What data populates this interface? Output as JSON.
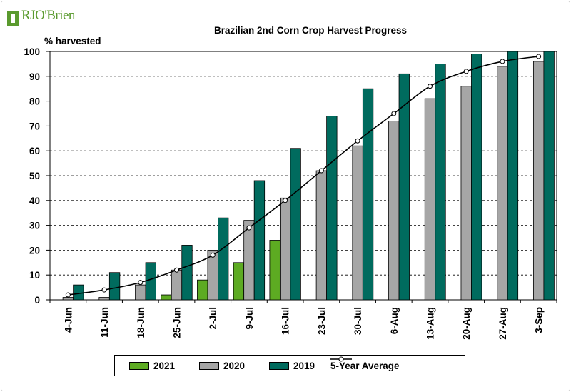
{
  "logo": {
    "text": "RJO'Brien",
    "color": "#5a9a2e"
  },
  "chart_data": {
    "type": "bar",
    "title": "Brazilian 2nd Corn Crop Harvest Progress",
    "ylabel": "% harvested",
    "xlabel": "",
    "ylim": [
      0,
      100
    ],
    "yticks": [
      0,
      10,
      20,
      30,
      40,
      50,
      60,
      70,
      80,
      90,
      100
    ],
    "grid": "dashed horizontal",
    "legend_position": "bottom",
    "categories": [
      "4-Jun",
      "11-Jun",
      "18-Jun",
      "25-Jun",
      "2-Jul",
      "9-Jul",
      "16-Jul",
      "23-Jul",
      "30-Jul",
      "6-Aug",
      "13-Aug",
      "20-Aug",
      "27-Aug",
      "3-Sep"
    ],
    "series": [
      {
        "name": "2021",
        "kind": "bar",
        "color": "#5dab22",
        "values": [
          null,
          null,
          null,
          2,
          8,
          15,
          24,
          null,
          null,
          null,
          null,
          null,
          null,
          null
        ]
      },
      {
        "name": "2020",
        "kind": "bar",
        "color": "#a6a6a6",
        "values": [
          1,
          1,
          6,
          12,
          20,
          32,
          41,
          52,
          62,
          72,
          81,
          86,
          94,
          96
        ]
      },
      {
        "name": "2019",
        "kind": "bar",
        "color": "#006b5e",
        "values": [
          6,
          11,
          15,
          22,
          33,
          48,
          61,
          74,
          85,
          91,
          95,
          99,
          100,
          100
        ]
      },
      {
        "name": "5-Year Average",
        "kind": "line",
        "color": "#000000",
        "values": [
          2,
          4,
          7,
          12,
          18,
          29,
          40,
          52,
          64,
          75,
          86,
          92,
          96,
          98
        ]
      }
    ]
  }
}
